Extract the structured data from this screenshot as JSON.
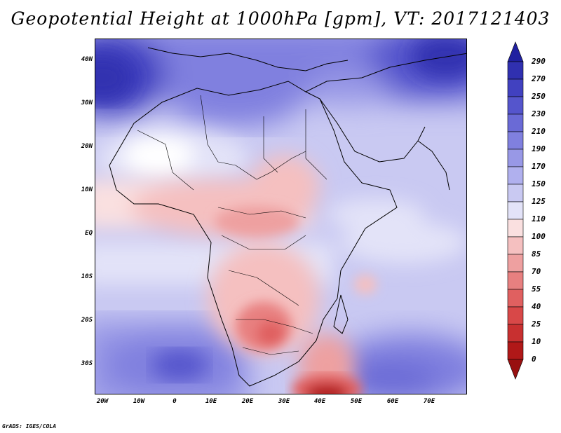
{
  "title": "Geopotential Height at 1000hPa [gpm], VT: 2017121403",
  "footer": "GrADS: IGES/COLA",
  "y_axis": {
    "labels": [
      "40N",
      "30N",
      "20N",
      "10N",
      "EQ",
      "10S",
      "20S",
      "30S"
    ],
    "values": [
      40,
      30,
      20,
      10,
      0,
      -10,
      -20,
      -30
    ],
    "range": [
      -37,
      45
    ]
  },
  "x_axis": {
    "labels": [
      "20W",
      "10W",
      "0",
      "10E",
      "20E",
      "30E",
      "40E",
      "50E",
      "60E",
      "70E"
    ],
    "values": [
      -20,
      -10,
      0,
      10,
      20,
      30,
      40,
      50,
      60,
      70
    ],
    "range": [
      -22,
      80
    ]
  },
  "colorbar": {
    "levels": [
      "290",
      "270",
      "250",
      "230",
      "210",
      "190",
      "170",
      "150",
      "125",
      "110",
      "100",
      "85",
      "70",
      "55",
      "40",
      "25",
      "10",
      "0"
    ],
    "colors": [
      "#2020a0",
      "#3030b0",
      "#4141c0",
      "#5555cc",
      "#6a6ad6",
      "#8080df",
      "#9898e6",
      "#b0b0ee",
      "#c9c9f2",
      "#e3e3f8",
      "#fae0e0",
      "#f5c0c0",
      "#eea0a0",
      "#e88080",
      "#e06060",
      "#d84848",
      "#c83030",
      "#b01818",
      "#981010"
    ]
  }
}
